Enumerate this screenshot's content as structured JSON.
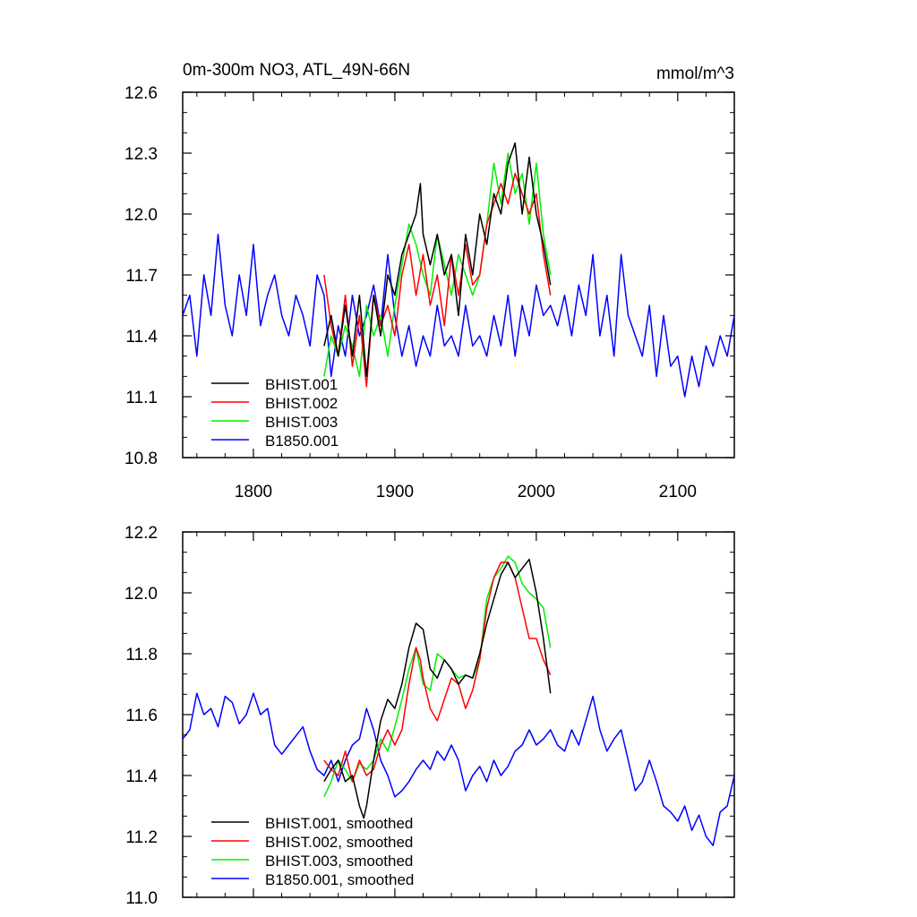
{
  "top_panel": {
    "title": "0m-300m NO3, ATL_49N-66N",
    "units": "mmol/m^3",
    "y_ticks": [
      "12.6",
      "12.3",
      "12.0",
      "11.7",
      "11.4",
      "11.1",
      "10.8"
    ],
    "x_ticks": [
      "1800",
      "1900",
      "2000",
      "2100"
    ],
    "legend": [
      "BHIST.001",
      "BHIST.002",
      "BHIST.003",
      "B1850.001"
    ]
  },
  "bottom_panel": {
    "y_ticks": [
      "12.2",
      "12.0",
      "11.8",
      "11.6",
      "11.4",
      "11.2",
      "11.0"
    ],
    "legend": [
      "BHIST.001, smoothed",
      "BHIST.002, smoothed",
      "BHIST.003, smoothed",
      "B1850.001, smoothed"
    ]
  },
  "colors": {
    "BHIST.001": "#000000",
    "BHIST.002": "#ff0000",
    "BHIST.003": "#00ee00",
    "B1850.001": "#0000ff"
  },
  "chart_data": [
    {
      "type": "line",
      "title": "0m-300m NO3, ATL_49N-66N",
      "ylabel": "mmol/m^3",
      "xlim": [
        1750,
        2140
      ],
      "ylim": [
        10.8,
        12.6
      ],
      "grid": false,
      "legend_position": "bottom-left",
      "series": [
        {
          "name": "BHIST.001",
          "x": [
            1850,
            1855,
            1860,
            1865,
            1870,
            1875,
            1880,
            1885,
            1890,
            1895,
            1900,
            1905,
            1910,
            1915,
            1918,
            1920,
            1925,
            1930,
            1935,
            1940,
            1945,
            1950,
            1955,
            1960,
            1965,
            1970,
            1975,
            1980,
            1985,
            1990,
            1995,
            2000,
            2005,
            2010
          ],
          "y": [
            11.35,
            11.5,
            11.3,
            11.55,
            11.3,
            11.6,
            11.2,
            11.6,
            11.4,
            11.7,
            11.6,
            11.8,
            11.9,
            12.0,
            12.15,
            11.9,
            11.75,
            11.9,
            11.7,
            11.8,
            11.5,
            11.9,
            11.7,
            12.0,
            11.85,
            12.1,
            12.0,
            12.25,
            12.35,
            12.0,
            12.28,
            12.0,
            11.85,
            11.65
          ]
        },
        {
          "name": "BHIST.002",
          "x": [
            1850,
            1855,
            1860,
            1865,
            1870,
            1875,
            1880,
            1885,
            1890,
            1895,
            1900,
            1905,
            1910,
            1915,
            1920,
            1925,
            1930,
            1935,
            1940,
            1945,
            1950,
            1955,
            1960,
            1965,
            1970,
            1975,
            1980,
            1985,
            1990,
            1995,
            2000,
            2005,
            2010
          ],
          "y": [
            11.7,
            11.45,
            11.3,
            11.6,
            11.25,
            11.5,
            11.15,
            11.6,
            11.45,
            11.55,
            11.4,
            11.7,
            11.85,
            11.6,
            11.8,
            11.55,
            11.7,
            11.45,
            11.8,
            11.6,
            11.85,
            11.65,
            11.7,
            11.95,
            12.05,
            12.15,
            12.05,
            12.2,
            12.1,
            12.0,
            12.1,
            11.8,
            11.6
          ]
        },
        {
          "name": "BHIST.003",
          "x": [
            1850,
            1855,
            1860,
            1865,
            1870,
            1875,
            1880,
            1885,
            1890,
            1895,
            1900,
            1905,
            1910,
            1915,
            1920,
            1925,
            1930,
            1935,
            1940,
            1945,
            1950,
            1955,
            1960,
            1965,
            1970,
            1975,
            1980,
            1985,
            1990,
            1995,
            2000,
            2005,
            2010
          ],
          "y": [
            11.2,
            11.4,
            11.3,
            11.45,
            11.35,
            11.2,
            11.55,
            11.4,
            11.5,
            11.3,
            11.55,
            11.75,
            11.95,
            11.85,
            11.7,
            11.6,
            11.9,
            11.75,
            11.6,
            11.8,
            11.7,
            11.6,
            11.7,
            11.95,
            12.25,
            12.05,
            12.3,
            12.1,
            12.2,
            11.95,
            12.25,
            11.9,
            11.7
          ]
        },
        {
          "name": "B1850.001",
          "x": [
            1750,
            1755,
            1760,
            1765,
            1770,
            1775,
            1780,
            1785,
            1790,
            1795,
            1800,
            1805,
            1810,
            1815,
            1820,
            1825,
            1830,
            1835,
            1840,
            1845,
            1850,
            1855,
            1860,
            1865,
            1870,
            1875,
            1880,
            1885,
            1890,
            1895,
            1900,
            1905,
            1910,
            1915,
            1920,
            1925,
            1930,
            1935,
            1940,
            1945,
            1950,
            1955,
            1960,
            1965,
            1970,
            1975,
            1980,
            1985,
            1990,
            1995,
            2000,
            2005,
            2010,
            2015,
            2020,
            2025,
            2030,
            2035,
            2040,
            2045,
            2050,
            2055,
            2060,
            2065,
            2070,
            2075,
            2080,
            2085,
            2090,
            2095,
            2100,
            2105,
            2110,
            2115,
            2120,
            2125,
            2130,
            2135,
            2140
          ],
          "y": [
            11.5,
            11.6,
            11.3,
            11.7,
            11.5,
            11.9,
            11.55,
            11.4,
            11.7,
            11.5,
            11.85,
            11.45,
            11.6,
            11.7,
            11.5,
            11.4,
            11.6,
            11.5,
            11.35,
            11.7,
            11.6,
            11.2,
            11.45,
            11.3,
            11.6,
            11.4,
            11.5,
            11.65,
            11.45,
            11.8,
            11.5,
            11.3,
            11.45,
            11.25,
            11.4,
            11.3,
            11.55,
            11.35,
            11.4,
            11.3,
            11.55,
            11.35,
            11.4,
            11.3,
            11.5,
            11.35,
            11.6,
            11.3,
            11.55,
            11.4,
            11.65,
            11.5,
            11.55,
            11.45,
            11.6,
            11.4,
            11.65,
            11.5,
            11.8,
            11.4,
            11.6,
            11.3,
            11.8,
            11.5,
            11.4,
            11.3,
            11.55,
            11.2,
            11.5,
            11.25,
            11.3,
            11.1,
            11.3,
            11.15,
            11.35,
            11.25,
            11.4,
            11.3,
            11.5
          ]
        }
      ]
    },
    {
      "type": "line",
      "xlim": [
        1750,
        2140
      ],
      "ylim": [
        11.0,
        12.2
      ],
      "grid": false,
      "legend_position": "bottom-left",
      "series": [
        {
          "name": "BHIST.001, smoothed",
          "x": [
            1850,
            1855,
            1860,
            1865,
            1870,
            1875,
            1878,
            1880,
            1885,
            1890,
            1895,
            1900,
            1905,
            1910,
            1915,
            1920,
            1925,
            1930,
            1935,
            1940,
            1945,
            1950,
            1955,
            1960,
            1965,
            1970,
            1975,
            1980,
            1985,
            1990,
            1995,
            2000,
            2005,
            2010
          ],
          "y": [
            11.38,
            11.42,
            11.45,
            11.38,
            11.4,
            11.3,
            11.26,
            11.3,
            11.45,
            11.58,
            11.65,
            11.62,
            11.7,
            11.82,
            11.9,
            11.88,
            11.75,
            11.72,
            11.78,
            11.75,
            11.7,
            11.73,
            11.72,
            11.8,
            11.9,
            11.98,
            12.06,
            12.1,
            12.05,
            12.08,
            12.11,
            12.0,
            11.85,
            11.67
          ]
        },
        {
          "name": "BHIST.002, smoothed",
          "x": [
            1850,
            1855,
            1860,
            1865,
            1870,
            1875,
            1880,
            1885,
            1890,
            1895,
            1900,
            1905,
            1910,
            1915,
            1918,
            1920,
            1925,
            1930,
            1935,
            1940,
            1945,
            1950,
            1955,
            1960,
            1965,
            1970,
            1975,
            1980,
            1985,
            1990,
            1995,
            2000,
            2005,
            2010
          ],
          "y": [
            11.45,
            11.42,
            11.4,
            11.48,
            11.38,
            11.45,
            11.4,
            11.42,
            11.5,
            11.55,
            11.5,
            11.55,
            11.7,
            11.82,
            11.78,
            11.72,
            11.62,
            11.58,
            11.65,
            11.72,
            11.7,
            11.62,
            11.68,
            11.78,
            11.95,
            12.05,
            12.1,
            12.1,
            12.05,
            11.95,
            11.85,
            11.85,
            11.78,
            11.73
          ]
        },
        {
          "name": "BHIST.003, smoothed",
          "x": [
            1850,
            1855,
            1860,
            1865,
            1870,
            1875,
            1880,
            1885,
            1890,
            1895,
            1900,
            1905,
            1910,
            1915,
            1920,
            1925,
            1930,
            1935,
            1940,
            1945,
            1950,
            1955,
            1960,
            1965,
            1970,
            1975,
            1980,
            1985,
            1990,
            1995,
            2000,
            2005,
            2010
          ],
          "y": [
            11.33,
            11.38,
            11.45,
            11.42,
            11.38,
            11.44,
            11.42,
            11.45,
            11.52,
            11.48,
            11.56,
            11.65,
            11.75,
            11.82,
            11.7,
            11.68,
            11.8,
            11.78,
            11.75,
            11.72,
            11.73,
            11.72,
            11.78,
            11.98,
            12.05,
            12.08,
            12.12,
            12.1,
            12.03,
            12.0,
            11.98,
            11.95,
            11.82
          ]
        },
        {
          "name": "B1850.001, smoothed",
          "x": [
            1750,
            1755,
            1760,
            1765,
            1770,
            1775,
            1780,
            1785,
            1790,
            1795,
            1800,
            1805,
            1810,
            1815,
            1820,
            1825,
            1830,
            1835,
            1840,
            1845,
            1850,
            1855,
            1860,
            1865,
            1870,
            1875,
            1880,
            1885,
            1890,
            1895,
            1900,
            1905,
            1910,
            1915,
            1920,
            1925,
            1930,
            1935,
            1940,
            1945,
            1950,
            1955,
            1960,
            1965,
            1970,
            1975,
            1980,
            1985,
            1990,
            1995,
            2000,
            2005,
            2010,
            2015,
            2020,
            2025,
            2030,
            2035,
            2040,
            2045,
            2050,
            2055,
            2060,
            2065,
            2070,
            2075,
            2080,
            2085,
            2090,
            2095,
            2100,
            2105,
            2110,
            2115,
            2120,
            2125,
            2130,
            2135,
            2140
          ],
          "y": [
            11.52,
            11.55,
            11.67,
            11.6,
            11.62,
            11.56,
            11.66,
            11.64,
            11.57,
            11.6,
            11.67,
            11.6,
            11.62,
            11.5,
            11.47,
            11.5,
            11.53,
            11.56,
            11.48,
            11.42,
            11.4,
            11.45,
            11.38,
            11.45,
            11.5,
            11.52,
            11.62,
            11.55,
            11.45,
            11.4,
            11.33,
            11.35,
            11.38,
            11.42,
            11.45,
            11.42,
            11.48,
            11.45,
            11.5,
            11.45,
            11.35,
            11.4,
            11.43,
            11.38,
            11.45,
            11.4,
            11.43,
            11.48,
            11.5,
            11.55,
            11.5,
            11.52,
            11.55,
            11.5,
            11.48,
            11.55,
            11.5,
            11.58,
            11.66,
            11.55,
            11.48,
            11.52,
            11.55,
            11.45,
            11.35,
            11.38,
            11.45,
            11.38,
            11.3,
            11.28,
            11.25,
            11.3,
            11.22,
            11.27,
            11.2,
            11.17,
            11.28,
            11.3,
            11.4
          ]
        }
      ]
    }
  ]
}
